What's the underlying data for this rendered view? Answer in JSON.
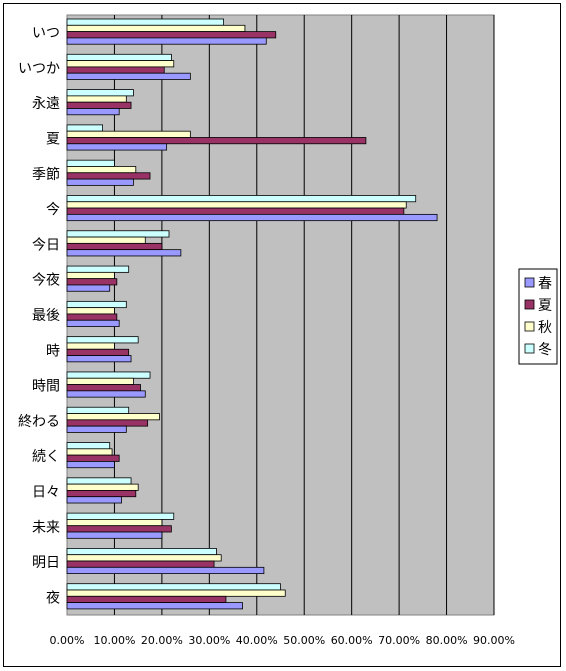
{
  "chart_data": {
    "type": "bar",
    "orientation": "horizontal",
    "categories": [
      "いつ",
      "いつか",
      "永遠",
      "夏",
      "季節",
      "今",
      "今日",
      "今夜",
      "最後",
      "時",
      "時間",
      "終わる",
      "続く",
      "日々",
      "未来",
      "明日",
      "夜"
    ],
    "series": [
      {
        "name": "冬",
        "color": "#ccffff",
        "values": [
          33,
          22,
          14,
          7.5,
          10,
          73.5,
          21.5,
          13,
          12.5,
          15,
          17.5,
          13,
          9,
          13.5,
          22.5,
          31.5,
          45
        ]
      },
      {
        "name": "秋",
        "color": "#ffffcc",
        "values": [
          37.5,
          22.5,
          12.5,
          26,
          14.5,
          71.5,
          16.5,
          10,
          10,
          10,
          14,
          19.5,
          9.5,
          15,
          20,
          32.5,
          46
        ]
      },
      {
        "name": "夏",
        "color": "#993366",
        "values": [
          44,
          20.5,
          13.5,
          63,
          17.5,
          71,
          20,
          10.5,
          10.5,
          13,
          15.5,
          17,
          11,
          14.5,
          22,
          31,
          33.5
        ]
      },
      {
        "name": "春",
        "color": "#9999ff",
        "values": [
          42,
          26,
          11,
          21,
          14,
          78,
          24,
          9,
          11,
          13.5,
          16.5,
          12.5,
          10,
          11.5,
          20,
          41.5,
          37
        ]
      }
    ],
    "xlim": [
      0,
      90
    ],
    "xticks": [
      "0.00%",
      "10.00%",
      "20.00%",
      "30.00%",
      "40.00%",
      "50.00%",
      "60.00%",
      "70.00%",
      "80.00%",
      "90.00%"
    ],
    "grid": true,
    "legend_position": "right",
    "title": "",
    "xlabel": "",
    "ylabel": ""
  }
}
